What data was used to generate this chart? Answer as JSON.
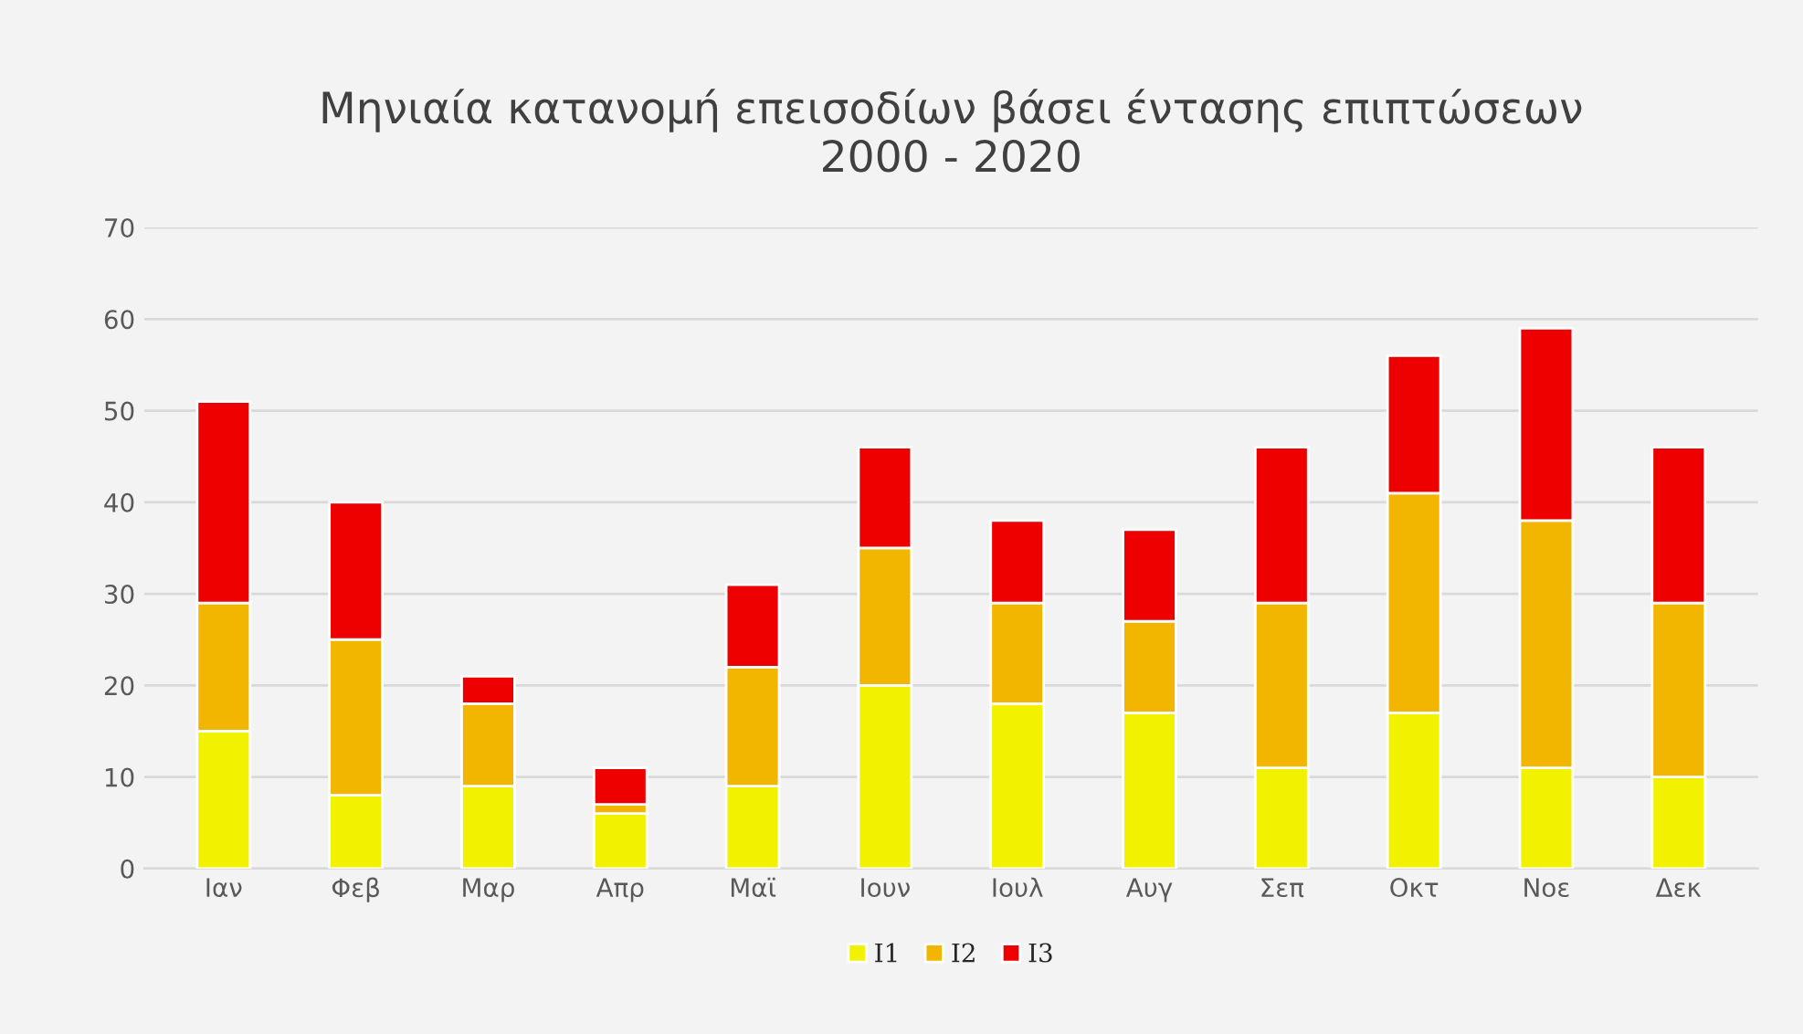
{
  "chart_data": {
    "type": "bar",
    "title": "Μηνιαία κατανομή επεισοδίων βάσει έντασης επιπτώσεων\n2000 - 2020",
    "categories": [
      "Ιαν",
      "Φεβ",
      "Μαρ",
      "Απρ",
      "Μαϊ",
      "Ιουν",
      "Ιουλ",
      "Αυγ",
      "Σεπ",
      "Οκτ",
      "Νοε",
      "Δεκ"
    ],
    "series": [
      {
        "name": "I1",
        "color": "#f2f200",
        "values": [
          15,
          8,
          9,
          6,
          9,
          20,
          18,
          17,
          11,
          17,
          11,
          10
        ]
      },
      {
        "name": "I2",
        "color": "#f2b600",
        "values": [
          14,
          17,
          9,
          1,
          13,
          15,
          11,
          10,
          18,
          24,
          27,
          19
        ]
      },
      {
        "name": "I3",
        "color": "#ee0000",
        "values": [
          22,
          15,
          3,
          4,
          9,
          11,
          9,
          10,
          17,
          15,
          21,
          17
        ]
      }
    ],
    "stacked": true,
    "ylim": [
      0,
      70
    ],
    "yticks": [
      0,
      10,
      20,
      30,
      40,
      50,
      60,
      70
    ],
    "grid": "y",
    "legend": "bottom"
  }
}
